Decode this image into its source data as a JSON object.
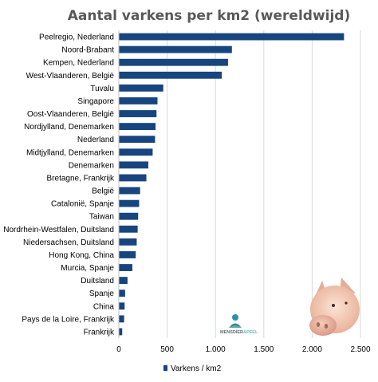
{
  "chart_data": {
    "type": "bar",
    "orientation": "horizontal",
    "title": "Aantal varkens per km2 (wereldwijd)",
    "categories": [
      "Peelregio, Nederland",
      "Noord-Brabant",
      "Kempen, Nederland",
      "West-Vlaanderen, België",
      "Tuvalu",
      "Singapore",
      "Oost-Vlaanderen, België",
      "Nordjylland, Denemarken",
      "Nederland",
      "Midtjylland, Denemarken",
      "Denemarken",
      "Bretagne, Frankrijk",
      "België",
      "Catalonië, Spanje",
      "Taiwan",
      "Nordrhein-Westfalen, Duitsland",
      "Niedersachsen, Duitsland",
      "Hong Kong, China",
      "Murcia, Spanje",
      "Duitsland",
      "Spanje",
      "China",
      "Pays de la Loire, Frankrijk",
      "Frankrijk"
    ],
    "series": [
      {
        "name": "Varkens / km2",
        "color": "#17457f",
        "values": [
          2330,
          1170,
          1130,
          1065,
          460,
          400,
          390,
          380,
          375,
          350,
          305,
          285,
          220,
          210,
          200,
          195,
          185,
          175,
          140,
          90,
          65,
          60,
          55,
          35
        ]
      }
    ],
    "x_ticks": [
      "0",
      "500",
      "1.000",
      "1.500",
      "2.000",
      "2.500"
    ],
    "xlim": [
      0,
      2500
    ],
    "grid": true,
    "legend_position": "bottom"
  },
  "logo": {
    "text_part1": "MENSDIER",
    "text_part2": "&PEEL",
    "icon": "pig-head-image"
  }
}
